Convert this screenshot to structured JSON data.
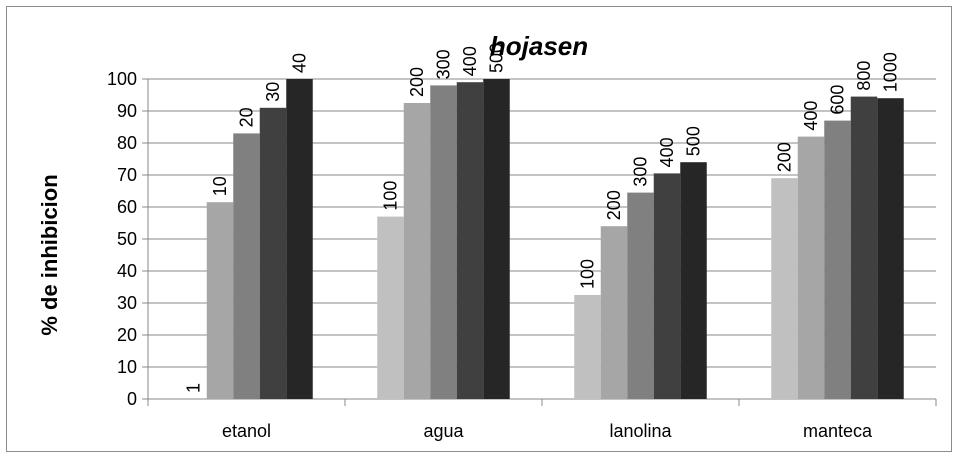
{
  "chart_data": {
    "type": "bar",
    "title": "hojasen",
    "ylabel": "% de inhibicion",
    "xlabel": "",
    "ylim": [
      0,
      100
    ],
    "yticks": [
      0,
      10,
      20,
      30,
      40,
      50,
      60,
      70,
      80,
      90,
      100
    ],
    "grid": true,
    "legend": "none",
    "categories": [
      "etanol",
      "agua",
      "lanolina",
      "manteca"
    ],
    "groups": [
      {
        "category": "etanol",
        "labels": [
          "1",
          "10",
          "20",
          "30",
          "40"
        ],
        "values": [
          0,
          61.5,
          83,
          91,
          100
        ]
      },
      {
        "category": "agua",
        "labels": [
          "100",
          "200",
          "300",
          "400",
          "500"
        ],
        "values": [
          57,
          92.5,
          98,
          99,
          100
        ]
      },
      {
        "category": "lanolina",
        "labels": [
          "100",
          "200",
          "300",
          "400",
          "500"
        ],
        "values": [
          32.5,
          54,
          64.5,
          70.5,
          74
        ]
      },
      {
        "category": "manteca",
        "labels": [
          "200",
          "400",
          "600",
          "800",
          "1000"
        ],
        "values": [
          69,
          82,
          87,
          94.5,
          94
        ]
      }
    ],
    "bar_colors": [
      "#c0c0c0",
      "#a6a6a6",
      "#808080",
      "#404040",
      "#262626"
    ]
  }
}
